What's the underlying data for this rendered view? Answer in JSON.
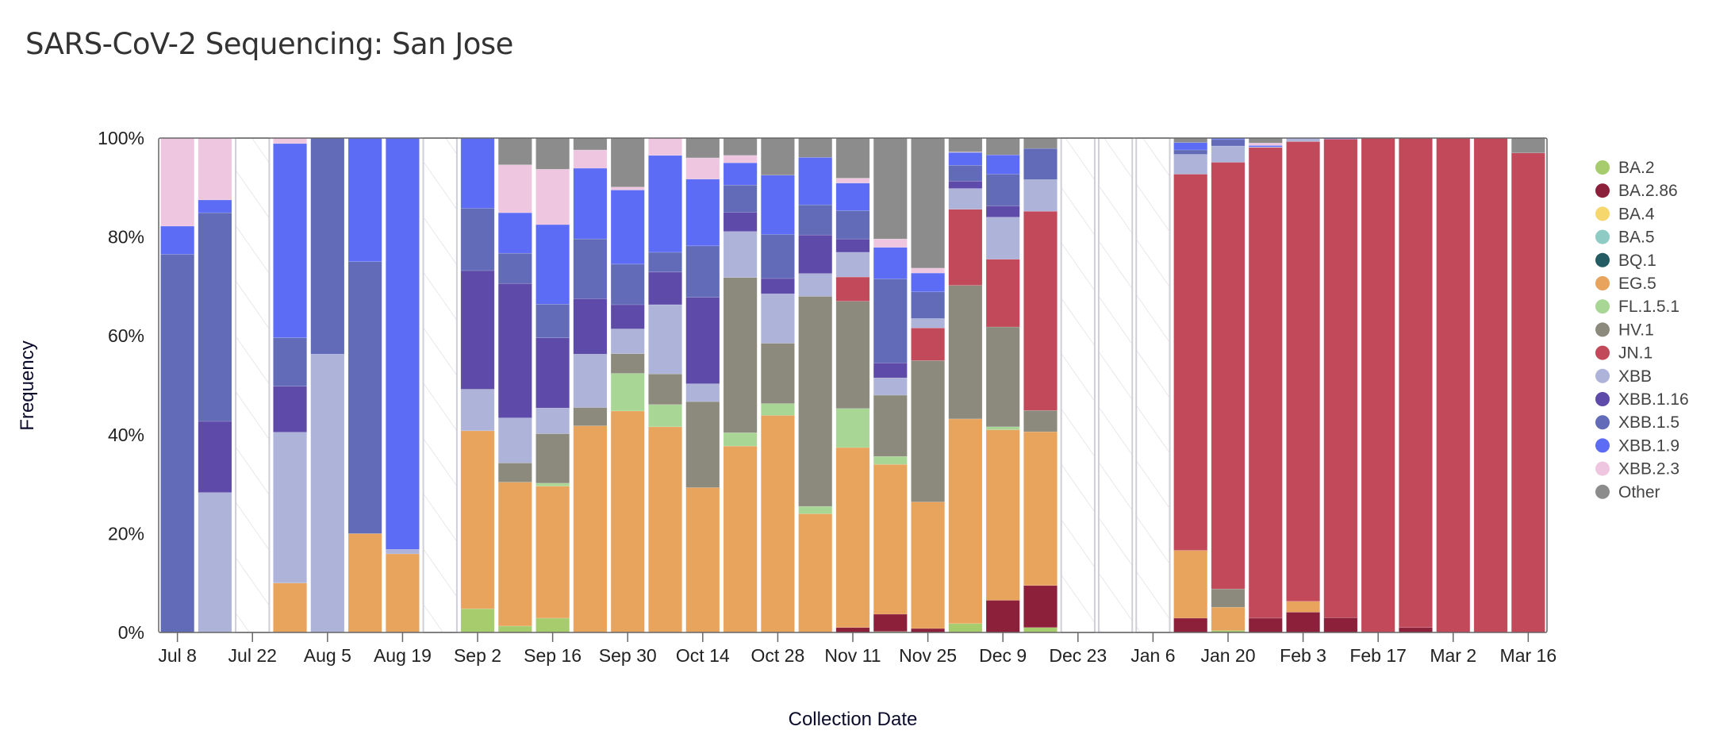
{
  "page": {
    "title": "SARS-CoV-2 Sequencing: San Jose"
  },
  "chart_data": {
    "type": "bar",
    "stacked": true,
    "title": "SARS-CoV-2 Sequencing: San Jose",
    "xlabel": "Collection Date",
    "ylabel": "Frequency",
    "ylim": [
      0,
      100
    ],
    "y_ticks": [
      "0%",
      "20%",
      "40%",
      "60%",
      "80%",
      "100%"
    ],
    "y_tick_values": [
      0,
      20,
      40,
      60,
      80,
      100
    ],
    "x_ticks": [
      "Jul 8",
      "Jul 22",
      "Aug 5",
      "Aug 19",
      "Sep 2",
      "Sep 16",
      "Sep 30",
      "Oct 14",
      "Oct 28",
      "Nov 11",
      "Nov 25",
      "Dec 9",
      "Dec 23",
      "Jan 6",
      "Jan 20",
      "Feb 3",
      "Feb 17",
      "Mar 2",
      "Mar 16"
    ],
    "legend_position": "right",
    "missing_data_style": "hatched",
    "categories": [
      "Jul 8",
      "Jul 15",
      "Jul 22",
      "Jul 29",
      "Aug 5",
      "Aug 12",
      "Aug 19",
      "Aug 26",
      "Sep 2",
      "Sep 9",
      "Sep 16",
      "Sep 23",
      "Sep 30",
      "Oct 7",
      "Oct 14",
      "Oct 21",
      "Oct 28",
      "Nov 4",
      "Nov 11",
      "Nov 18",
      "Nov 25",
      "Dec 2",
      "Dec 9",
      "Dec 16",
      "Dec 23",
      "Dec 30",
      "Jan 6",
      "Jan 13",
      "Jan 20",
      "Jan 27",
      "Feb 3",
      "Feb 10",
      "Feb 17",
      "Feb 24",
      "Mar 2",
      "Mar 9",
      "Mar 16"
    ],
    "missing": [
      false,
      false,
      true,
      false,
      false,
      false,
      false,
      true,
      false,
      false,
      false,
      false,
      false,
      false,
      false,
      false,
      false,
      false,
      false,
      false,
      false,
      false,
      false,
      false,
      true,
      true,
      true,
      false,
      false,
      false,
      false,
      false,
      false,
      false,
      false,
      false,
      false
    ],
    "series": [
      {
        "name": "BA.2",
        "color": "#a6cc6e",
        "values": [
          0,
          0,
          0,
          0,
          0,
          0,
          0,
          0,
          4.8,
          1.3,
          2.9,
          0,
          0,
          0,
          0,
          0,
          0,
          0,
          0,
          0.2,
          0,
          1.8,
          0,
          1.0,
          0,
          0,
          0,
          0,
          0.4,
          0,
          0,
          0,
          0,
          0,
          0,
          0,
          0
        ]
      },
      {
        "name": "BA.2.86",
        "color": "#8c1f3a",
        "values": [
          0,
          0,
          0,
          0,
          0,
          0,
          0,
          0,
          0,
          0,
          0,
          0,
          0,
          0,
          0,
          0,
          0,
          0,
          1.0,
          3.5,
          0.8,
          0,
          6.5,
          8.5,
          0,
          0,
          0,
          2.9,
          0,
          2.9,
          4.1,
          3.0,
          0,
          1.0,
          0,
          0,
          0
        ]
      },
      {
        "name": "BA.4",
        "color": "#f5d76e",
        "values": [
          0,
          0,
          0,
          0,
          0,
          0,
          0,
          0,
          0,
          0,
          0,
          0,
          0,
          0,
          0,
          0,
          0,
          0,
          0,
          0,
          0,
          0,
          0,
          0,
          0,
          0,
          0,
          0,
          0,
          0,
          0,
          0,
          0,
          0,
          0,
          0,
          0
        ]
      },
      {
        "name": "BA.5",
        "color": "#8ecbc4",
        "values": [
          0,
          0,
          0,
          0,
          0,
          0,
          0,
          0,
          0,
          0,
          0,
          0,
          0,
          0,
          0,
          0,
          0,
          0,
          0,
          0,
          0,
          0,
          0,
          0,
          0,
          0,
          0,
          0,
          0,
          0,
          0,
          0,
          0,
          0,
          0,
          0,
          0
        ]
      },
      {
        "name": "BQ.1",
        "color": "#245c63",
        "values": [
          0,
          0,
          0,
          0,
          0,
          0,
          0,
          0,
          0,
          0,
          0,
          0,
          0,
          0,
          0,
          0,
          0,
          0,
          0,
          0,
          0,
          0,
          0,
          0,
          0,
          0,
          0,
          0,
          0,
          0,
          0,
          0,
          0,
          0,
          0,
          0,
          0
        ]
      },
      {
        "name": "EG.5",
        "color": "#e8a35d",
        "values": [
          0,
          0,
          0,
          10.0,
          0,
          20.0,
          15.9,
          0,
          36.0,
          29.1,
          26.7,
          41.8,
          44.8,
          41.6,
          29.3,
          37.7,
          43.9,
          24.0,
          36.4,
          30.3,
          25.6,
          41.4,
          34.5,
          31.1,
          0,
          0,
          0,
          13.7,
          4.7,
          0,
          2.2,
          0,
          0,
          0,
          0,
          0,
          0
        ]
      },
      {
        "name": "FL.1.5.1",
        "color": "#a8d695",
        "values": [
          0,
          0,
          0,
          0,
          0,
          0,
          0,
          0,
          0,
          0,
          0.6,
          0,
          7.6,
          4.5,
          0,
          2.7,
          2.4,
          1.5,
          7.9,
          1.6,
          0,
          0,
          0.6,
          0,
          0,
          0,
          0,
          0,
          0,
          0,
          0,
          0,
          0,
          0,
          0,
          0,
          0
        ]
      },
      {
        "name": "HV.1",
        "color": "#8c8a7c",
        "values": [
          0,
          0,
          0,
          0,
          0,
          0,
          0,
          0,
          0,
          3.9,
          10.0,
          3.7,
          4.0,
          6.2,
          17.4,
          31.4,
          12.2,
          42.5,
          21.7,
          12.4,
          28.6,
          27.0,
          20.2,
          4.3,
          0,
          0,
          0,
          0,
          3.7,
          0,
          0,
          0,
          0,
          0,
          0,
          0,
          0
        ]
      },
      {
        "name": "JN.1",
        "color": "#c1495a",
        "values": [
          0,
          0,
          0,
          0,
          0,
          0,
          0,
          0,
          0,
          0,
          0,
          0,
          0,
          0,
          0,
          0,
          0,
          0,
          4.9,
          0,
          6.6,
          15.4,
          13.7,
          40.3,
          0,
          0,
          0,
          76.1,
          86.3,
          95.2,
          93.0,
          96.8,
          100,
          99.0,
          100,
          100,
          97.0
        ]
      },
      {
        "name": "XBB",
        "color": "#aeb3d9",
        "values": [
          0,
          28.3,
          0,
          30.5,
          56.3,
          0,
          0.9,
          0,
          8.4,
          9.1,
          5.2,
          10.8,
          5.0,
          14.0,
          3.6,
          9.3,
          10.0,
          4.6,
          5.0,
          3.5,
          1.9,
          4.2,
          8.5,
          6.4,
          0,
          0,
          0,
          4.0,
          3.3,
          0.1,
          0.7,
          0,
          0,
          0,
          0,
          0,
          0
        ]
      },
      {
        "name": "XBB.1.16",
        "color": "#5e4aa8",
        "values": [
          0,
          14.4,
          0,
          9.3,
          0,
          0,
          0,
          0,
          24.0,
          27.2,
          14.2,
          11.2,
          4.9,
          6.6,
          17.5,
          3.9,
          3.1,
          7.8,
          2.7,
          3.0,
          0,
          1.5,
          2.3,
          0,
          0,
          0,
          0,
          0,
          0,
          0,
          0,
          0,
          0,
          0,
          0,
          0,
          0
        ]
      },
      {
        "name": "XBB.1.5",
        "color": "#616bb8",
        "values": [
          76.5,
          42.2,
          0,
          9.8,
          43.7,
          55.0,
          0,
          0,
          12.6,
          6.1,
          6.8,
          12.1,
          8.2,
          4.0,
          10.4,
          5.5,
          8.9,
          6.1,
          5.7,
          17.0,
          5.4,
          3.2,
          6.4,
          6.3,
          0,
          0,
          0,
          0.9,
          1.3,
          0,
          0,
          0,
          0,
          0,
          0,
          0,
          0
        ]
      },
      {
        "name": "XBB.1.9",
        "color": "#5d6cf5",
        "values": [
          5.7,
          2.6,
          0,
          39.3,
          0,
          25.0,
          83.2,
          0,
          14.2,
          8.2,
          16.1,
          14.3,
          15.0,
          19.6,
          13.5,
          4.5,
          12.0,
          9.6,
          5.6,
          6.4,
          3.8,
          2.6,
          3.9,
          0,
          0,
          0,
          0,
          1.5,
          0.3,
          0.3,
          0,
          0.2,
          0,
          0,
          0,
          0,
          0
        ]
      },
      {
        "name": "XBB.2.3",
        "color": "#efc6e0",
        "values": [
          17.8,
          12.5,
          0,
          1.1,
          0,
          0,
          0,
          0,
          0,
          9.7,
          11.2,
          3.7,
          0.6,
          3.5,
          4.3,
          1.5,
          0,
          0,
          1.0,
          1.7,
          1.0,
          0.1,
          0,
          0,
          0,
          0,
          0,
          0,
          0,
          0.5,
          0,
          0,
          0,
          0,
          0,
          0,
          0
        ]
      },
      {
        "name": "Other",
        "color": "#8c8c8c",
        "values": [
          0,
          0,
          0,
          0,
          0,
          0,
          0,
          0,
          0,
          5.4,
          6.3,
          2.4,
          9.9,
          0,
          4.0,
          3.5,
          7.5,
          3.9,
          8.1,
          20.4,
          26.3,
          2.8,
          3.4,
          2.1,
          0,
          0,
          0,
          0.9,
          0,
          1.0,
          0,
          0,
          0,
          0,
          0,
          0,
          3.0
        ]
      }
    ]
  }
}
